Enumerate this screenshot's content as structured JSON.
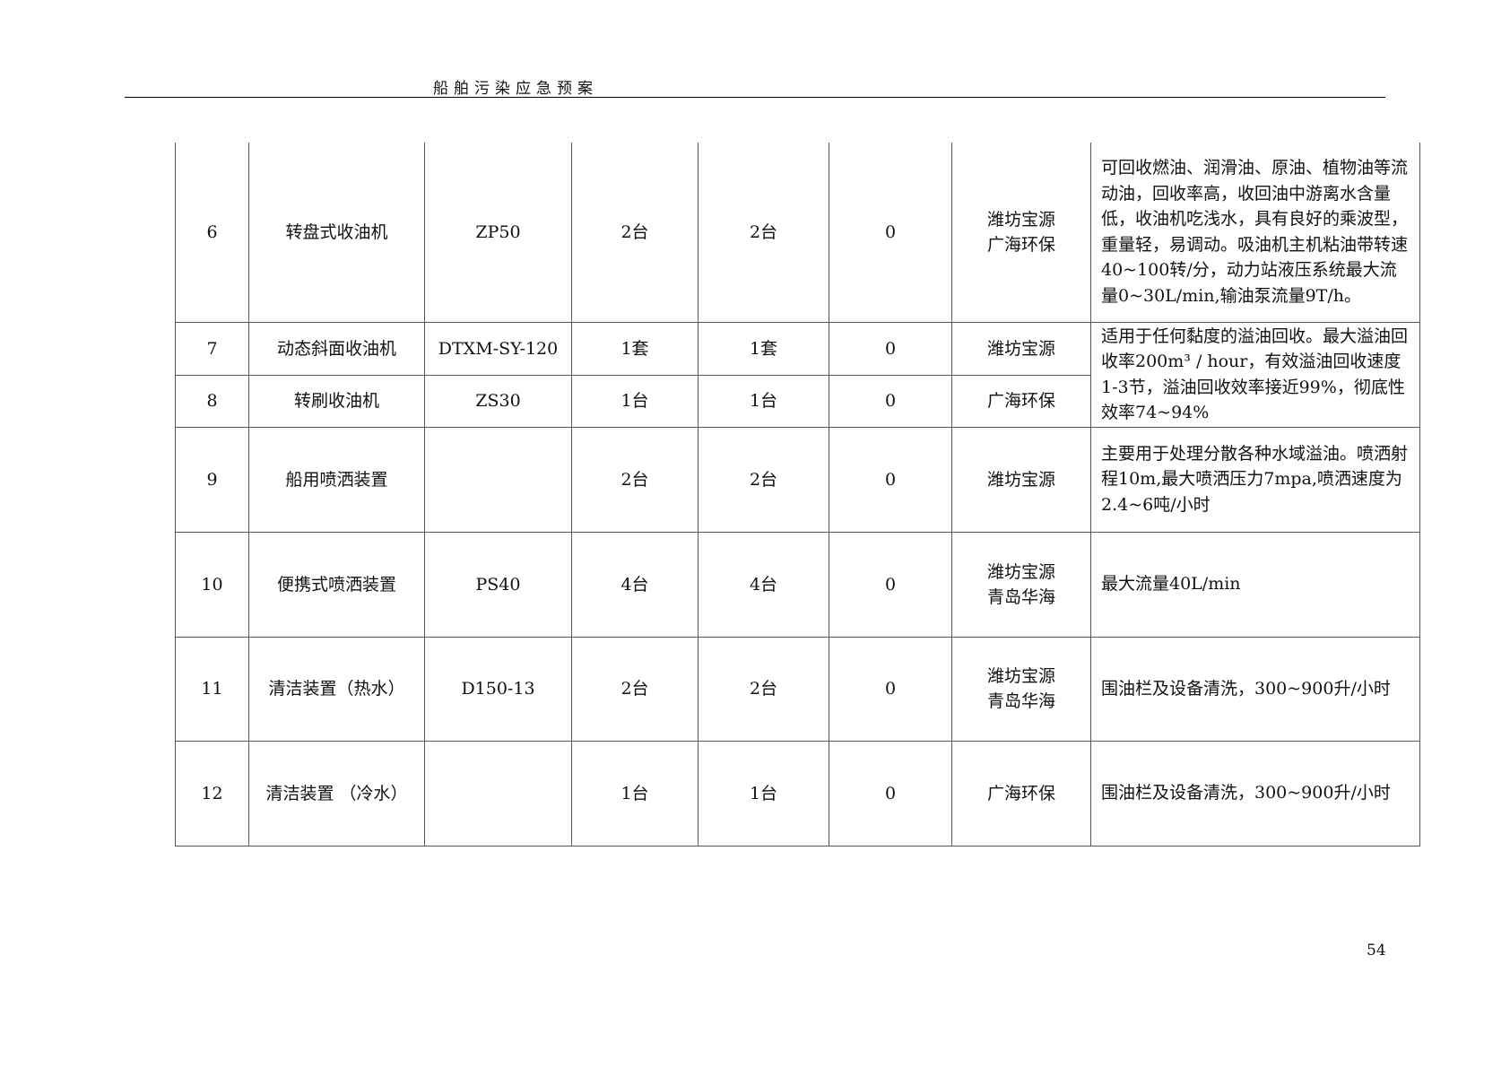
{
  "header": {
    "title": "船舶污染应急预案"
  },
  "rows": [
    {
      "no": "6",
      "name": "转盘式收油机",
      "model": "ZP50",
      "qty1": "2台",
      "qty2": "2台",
      "qty3": "0",
      "source": [
        "潍坊宝源",
        "广海环保"
      ],
      "desc": "可回收燃油、润滑油、原油、植物油等流动油，回收率高，收回油中游离水含量低，收油机吃浅水，具有良好的乘波型，重量轻，易调动。吸油机主机粘油带转速40~100转/分，动力站液压系统最大流量0~30L/min,输油泵流量9T/h。"
    },
    {
      "no": "7",
      "name": "动态斜面收油机",
      "model": "DTXM-SY-120",
      "qty1": "1套",
      "qty2": "1套",
      "qty3": "0",
      "source": [
        "潍坊宝源"
      ],
      "desc": "适用于任何黏度的溢油回收。最大溢油回收率200m³ / hour，有效溢油回收速度1-3节，溢油回收效率接近99%，彻底性效率74~94%"
    },
    {
      "no": "8",
      "name": "转刷收油机",
      "model": "ZS30",
      "qty1": "1台",
      "qty2": "1台",
      "qty3": "0",
      "source": [
        "广海环保"
      ]
    },
    {
      "no": "9",
      "name": "船用喷洒装置",
      "model": "",
      "qty1": "2台",
      "qty2": "2台",
      "qty3": "0",
      "source": [
        "潍坊宝源"
      ],
      "desc": "主要用于处理分散各种水域溢油。喷洒射程10m,最大喷洒压力7mpa,喷洒速度为2.4~6吨/小时"
    },
    {
      "no": "10",
      "name": "便携式喷洒装置",
      "model": "PS40",
      "qty1": "4台",
      "qty2": "4台",
      "qty3": "0",
      "source": [
        "潍坊宝源",
        "青岛华海"
      ],
      "desc": "最大流量40L/min"
    },
    {
      "no": "11",
      "name": "清洁装置（热水）",
      "model": "D150-13",
      "qty1": "2台",
      "qty2": "2台",
      "qty3": "0",
      "source": [
        "潍坊宝源",
        "青岛华海"
      ],
      "desc": "围油栏及设备清洗，300~900升/小时"
    },
    {
      "no": "12",
      "name": "清洁装置 （冷水）",
      "model": "",
      "qty1": "1台",
      "qty2": "1台",
      "qty3": "0",
      "source": [
        "广海环保"
      ],
      "desc": "围油栏及设备清洗，300~900升/小时"
    }
  ],
  "page_number": "54"
}
